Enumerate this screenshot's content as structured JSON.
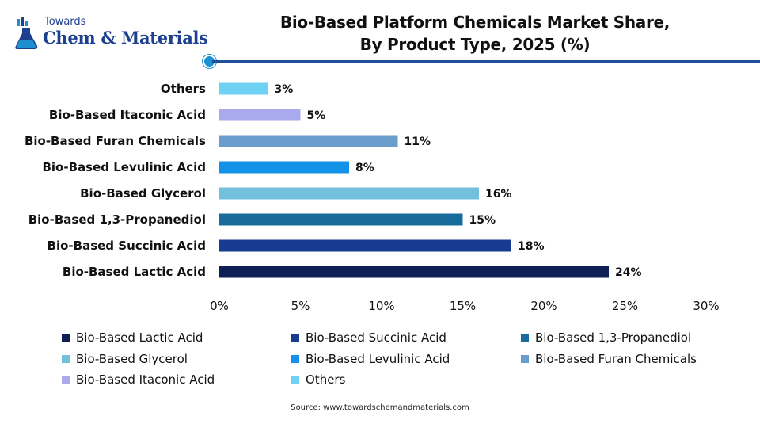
{
  "brand": {
    "top_word": "Towards",
    "name": "Chem & Materials",
    "icon": "flask-chart-icon"
  },
  "chart_data": {
    "type": "bar",
    "orientation": "horizontal",
    "title": "Bio-Based Platform Chemicals Market Share, By Product Type, 2025 (%)",
    "title_lines": [
      "Bio-Based Platform Chemicals Market Share,",
      "By Product Type, 2025 (%)"
    ],
    "categories": [
      "Others",
      "Bio-Based Itaconic Acid",
      "Bio-Based Furan Chemicals",
      "Bio-Based Levulinic Acid",
      "Bio-Based Glycerol",
      "Bio-Based 1,3-Propanediol",
      "Bio-Based Succinic Acid",
      "Bio-Based Lactic Acid"
    ],
    "values": [
      3,
      5,
      11,
      8,
      16,
      15,
      18,
      24
    ],
    "value_labels": [
      "3%",
      "5%",
      "11%",
      "8%",
      "16%",
      "15%",
      "18%",
      "24%"
    ],
    "colors": [
      "#6fd2f5",
      "#a9a9ee",
      "#6a9ccc",
      "#1492ea",
      "#73c0dc",
      "#176c9c",
      "#163b91",
      "#0f1f55"
    ],
    "xlim": [
      0,
      30
    ],
    "xticks": [
      0,
      5,
      10,
      15,
      20,
      25,
      30
    ],
    "xtick_labels": [
      "0%",
      "5%",
      "10%",
      "15%",
      "20%",
      "25%",
      "30%"
    ],
    "xlabel": "",
    "ylabel": "",
    "grid": false,
    "legend_position": "bottom",
    "legend": [
      {
        "label": "Bio-Based Lactic Acid",
        "color": "#0f1f55"
      },
      {
        "label": "Bio-Based Succinic Acid",
        "color": "#163b91"
      },
      {
        "label": "Bio-Based 1,3-Propanediol",
        "color": "#176c9c"
      },
      {
        "label": "Bio-Based Glycerol",
        "color": "#73c0dc"
      },
      {
        "label": "Bio-Based Levulinic Acid",
        "color": "#1492ea"
      },
      {
        "label": "Bio-Based Furan Chemicals",
        "color": "#6a9ccc"
      },
      {
        "label": "Bio-Based Itaconic Acid",
        "color": "#a9a9ee"
      },
      {
        "label": "Others",
        "color": "#6fd2f5"
      }
    ]
  },
  "source": "Source: www.towardschemandmaterials.com",
  "colors": {
    "accent_rule": "#1d4f9b",
    "accent_dot": "#1d8fd0",
    "brand_text": "#1d3f8f"
  }
}
